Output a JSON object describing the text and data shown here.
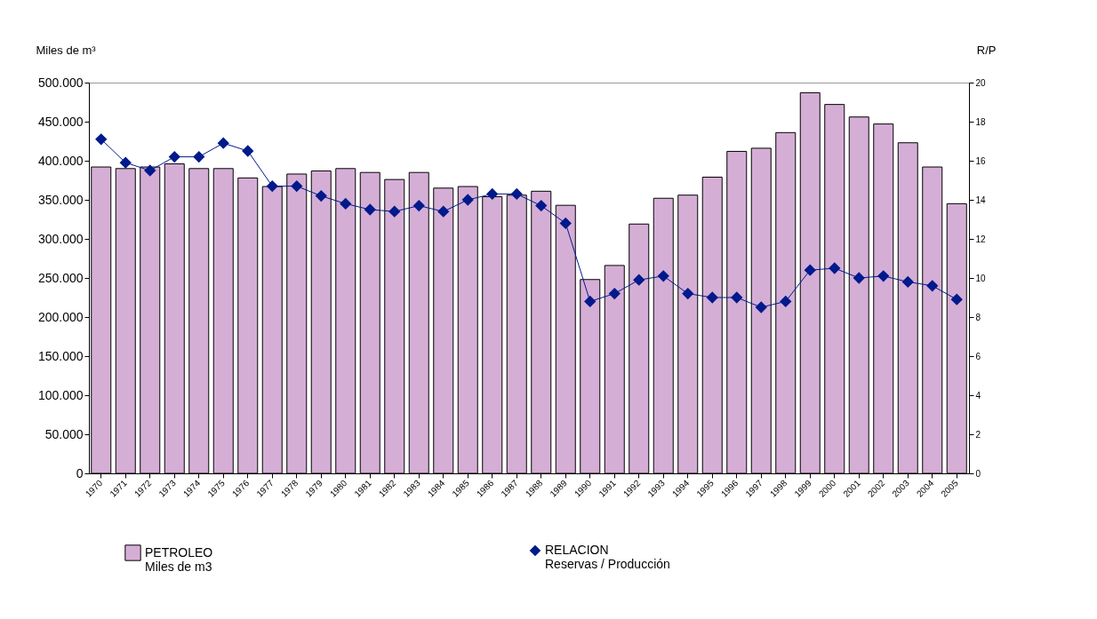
{
  "chart_data": {
    "type": "bar",
    "ylabel": "Miles de m³",
    "y2label": "R/P",
    "legend": "bottom",
    "grid": false,
    "marker": "diamond",
    "line_style": "solid",
    "categories": [
      "1970",
      "1971",
      "1972",
      "1973",
      "1974",
      "1975",
      "1976",
      "1977",
      "1978",
      "1979",
      "1980",
      "1981",
      "1982",
      "1983",
      "1984",
      "1985",
      "1986",
      "1987",
      "1988",
      "1989",
      "1990",
      "1991",
      "1992",
      "1993",
      "1994",
      "1995",
      "1996",
      "1997",
      "1998",
      "1999",
      "2000",
      "2001",
      "2002",
      "2003",
      "2004",
      "2005"
    ],
    "ylim": [
      0,
      500000
    ],
    "yticks": [
      0,
      {
        "value": 50000,
        "label": "50.000"
      },
      {
        "value": 100000,
        "label": "100.000"
      },
      {
        "value": 150000,
        "label": "150.000"
      },
      {
        "value": 200000,
        "label": "200.000"
      },
      {
        "value": 250000,
        "label": "250.000"
      },
      {
        "value": 300000,
        "label": "300.000"
      },
      {
        "value": 350000,
        "label": "350.000"
      },
      {
        "value": 400000,
        "label": "400.000"
      },
      {
        "value": 450000,
        "label": "450.000"
      },
      {
        "value": 500000,
        "label": "500.000"
      }
    ],
    "y2lim": [
      0,
      20
    ],
    "y2ticks": [
      0,
      2,
      4,
      6,
      8,
      10,
      12,
      14,
      16,
      18,
      20
    ],
    "series": [
      {
        "name": "PETROLEO\nMiles de m3",
        "color": "#d5aed6",
        "values": [
          392000,
          390000,
          392000,
          396000,
          390000,
          390000,
          378000,
          367000,
          383000,
          387000,
          390000,
          385000,
          376000,
          385000,
          365000,
          367000,
          354000,
          356000,
          361000,
          343000,
          248000,
          266000,
          319000,
          352000,
          356000,
          379000,
          412000,
          416000,
          436000,
          487000,
          472000,
          456000,
          447000,
          423000,
          392000,
          345000
        ]
      },
      {
        "name": "RELACION\nReservas / Producción",
        "type": "line",
        "axis": "y2",
        "color": "#001a8c",
        "values": [
          17.1,
          15.9,
          15.5,
          16.2,
          16.2,
          16.9,
          16.5,
          14.7,
          14.7,
          14.2,
          13.8,
          13.5,
          13.4,
          13.7,
          13.4,
          14.0,
          14.3,
          14.3,
          13.7,
          12.8,
          8.8,
          9.2,
          9.9,
          10.1,
          9.2,
          9.0,
          9.0,
          8.5,
          8.8,
          10.4,
          10.5,
          10.0,
          10.1,
          9.8,
          9.6,
          8.9
        ]
      }
    ]
  }
}
